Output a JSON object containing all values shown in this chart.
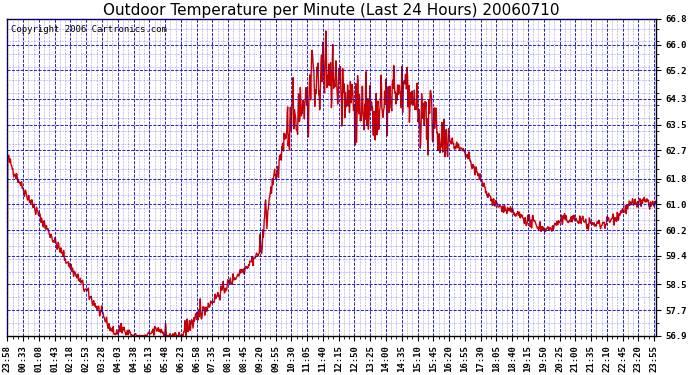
{
  "title": "Outdoor Temperature per Minute (Last 24 Hours) 20060710",
  "copyright": "Copyright 2006 Cartronics.com",
  "bg_color": "#ffffff",
  "line_color": "#cc0000",
  "grid_color": "#0000cc",
  "y_ticks": [
    56.9,
    57.7,
    58.5,
    59.4,
    60.2,
    61.0,
    61.8,
    62.7,
    63.5,
    64.3,
    65.2,
    66.0,
    66.8
  ],
  "x_tick_labels": [
    "23:58",
    "00:33",
    "01:08",
    "01:43",
    "02:18",
    "02:53",
    "03:28",
    "04:03",
    "04:38",
    "05:13",
    "05:48",
    "06:23",
    "06:58",
    "07:35",
    "08:10",
    "08:45",
    "09:20",
    "09:55",
    "10:30",
    "11:05",
    "11:40",
    "12:15",
    "12:50",
    "13:25",
    "14:00",
    "14:35",
    "15:10",
    "15:45",
    "16:20",
    "16:55",
    "17:30",
    "18:05",
    "18:40",
    "19:15",
    "19:50",
    "20:25",
    "21:00",
    "21:35",
    "22:10",
    "22:45",
    "23:20",
    "23:55"
  ],
  "y_min": 56.9,
  "y_max": 66.8,
  "title_fontsize": 11,
  "copyright_fontsize": 6.5,
  "tick_fontsize": 6.5,
  "line_width": 1.0,
  "outer_bg": "#ffffff"
}
